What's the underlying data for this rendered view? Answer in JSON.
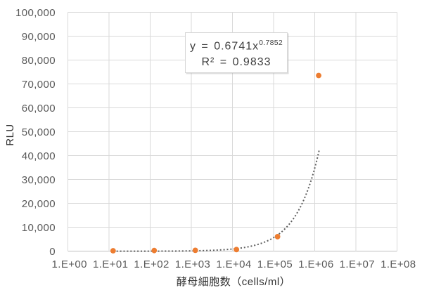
{
  "chart_data": {
    "type": "scatter",
    "title": "",
    "xlabel": "酵母細胞数（cells/ml）",
    "ylabel": "RLU",
    "x_scale": "log",
    "xlim": [
      1,
      100000000
    ],
    "ylim": [
      0,
      100000
    ],
    "x_ticks": [
      "1.E+00",
      "1.E+01",
      "1.E+02",
      "1.E+03",
      "1.E+04",
      "1.E+05",
      "1.E+06",
      "1.E+07",
      "1.E+08"
    ],
    "y_ticks": [
      "0",
      "10,000",
      "20,000",
      "30,000",
      "40,000",
      "50,000",
      "60,000",
      "70,000",
      "80,000",
      "90,000",
      "100,000"
    ],
    "grid": true,
    "legend": false,
    "series": [
      {
        "name": "RLU",
        "marker": "circle",
        "marker_color": "#ED7D31",
        "x": [
          12.5,
          125,
          1250,
          12500,
          125000,
          1250000
        ],
        "y": [
          200,
          300,
          400,
          700,
          6100,
          73500
        ]
      }
    ],
    "trendline": {
      "type": "power",
      "coefficient": 0.6741,
      "exponent": 0.7852,
      "r_squared": 0.9833,
      "style": "dotted",
      "color": "#5f5f5f",
      "x_range": [
        12.5,
        1300000
      ]
    }
  },
  "equation": {
    "base": "y = 0.6741x",
    "exponent": "0.7852",
    "r_squared": "R² = 0.9833"
  },
  "colors": {
    "grid": "#d9d9d9",
    "axis": "#bfbfbf",
    "tick": "#595959",
    "marker": "#ED7D31",
    "trend": "#5f5f5f"
  }
}
